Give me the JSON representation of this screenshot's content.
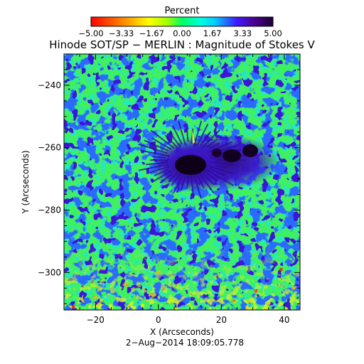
{
  "colorbar": {
    "title": "Percent",
    "tick_labels": [
      "−5.00",
      "−3.33",
      "−1.67",
      "0.00",
      "1.67",
      "3.33",
      "5.00"
    ],
    "colors": [
      "#ff0000",
      "#ff8c00",
      "#ffff00",
      "#00ff64",
      "#00ccff",
      "#3f19ff",
      "#1a0030"
    ]
  },
  "chart_data": {
    "type": "heatmap",
    "title": "Hinode SOT/SP − MERLIN : Magnitude of Stokes V",
    "xlabel": "X (Arcseconds)",
    "ylabel": "Y (Arcseconds)",
    "xlim": [
      -30,
      45
    ],
    "ylim": [
      -312,
      -230
    ],
    "x_ticks": [
      -20,
      0,
      20,
      40
    ],
    "x_tick_labels": [
      "−20",
      "0",
      "20",
      "40"
    ],
    "y_ticks": [
      -240,
      -260,
      -280,
      -300
    ],
    "y_tick_labels": [
      "−240",
      "−260",
      "−280",
      "−300"
    ],
    "value_range": [
      -5.0,
      5.0
    ],
    "value_units": "Percent",
    "features": {
      "sunspot_umbrae": [
        {
          "x": 10,
          "y": -264,
          "value": 5.0
        },
        {
          "x": 23,
          "y": -261,
          "value": 5.0
        },
        {
          "x": 30,
          "y": -260,
          "value": 5.0
        }
      ]
    },
    "date_label": "2−Aug−2014  18:09:05.778"
  },
  "date": "2−Aug−2014  18:09:05.778"
}
